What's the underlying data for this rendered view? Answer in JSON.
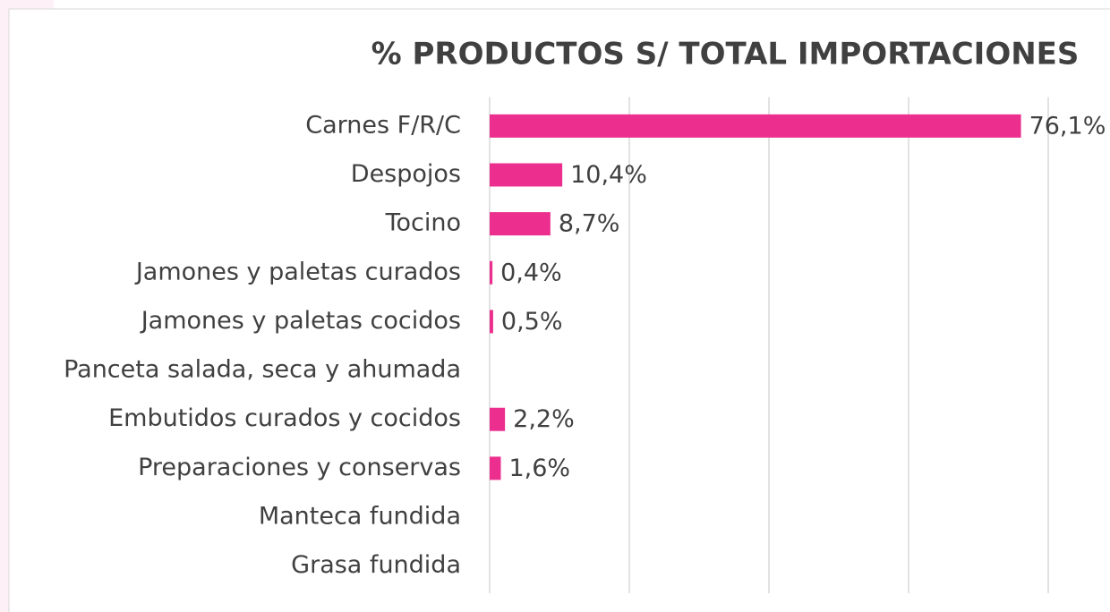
{
  "chart_data": {
    "type": "bar",
    "orientation": "horizontal",
    "title": "% PRODUCTOS S/ TOTAL IMPORTACIONES",
    "categories": [
      "Carnes F/R/C",
      "Despojos",
      "Tocino",
      "Jamones y paletas curados",
      "Jamones y paletas cocidos",
      "Panceta salada, seca y ahumada",
      "Embutidos curados y cocidos",
      "Preparaciones y conservas",
      "Manteca fundida",
      "Grasa fundida"
    ],
    "values": [
      76.1,
      10.4,
      8.7,
      0.4,
      0.5,
      null,
      2.2,
      1.6,
      null,
      null
    ],
    "value_labels": [
      "76,1%",
      "10,4%",
      "8,7%",
      "0,4%",
      "0,5%",
      null,
      "2,2%",
      "1,6%",
      null,
      null
    ],
    "color": "#ec2f8e",
    "xlim": [
      0,
      80
    ],
    "xticks": [
      0,
      20,
      40,
      60,
      80
    ],
    "grid": true
  }
}
